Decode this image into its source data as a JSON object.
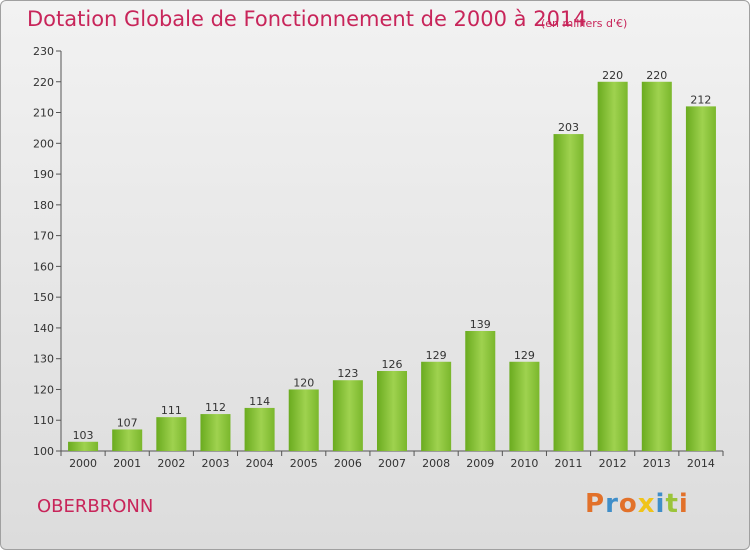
{
  "header": {
    "title": "Dotation Globale de Fonctionnement de 2000 à 2014",
    "subtitle": "(en milliers d'€)"
  },
  "footer": {
    "commune": "OBERBRONN",
    "logo_text": "Proxiti"
  },
  "colors": {
    "title": "#c8255a",
    "bar_light": "#9fd24f",
    "bar_dark": "#5f9e19",
    "logo_letters": [
      "#e2712a",
      "#3f8ec9",
      "#e2712a",
      "#f0c419",
      "#3f8ec9",
      "#9bc43a",
      "#e2712a"
    ]
  },
  "chart_data": {
    "type": "bar",
    "categories": [
      "2000",
      "2001",
      "2002",
      "2003",
      "2004",
      "2005",
      "2006",
      "2007",
      "2008",
      "2009",
      "2010",
      "2011",
      "2012",
      "2013",
      "2014"
    ],
    "values": [
      103,
      107,
      111,
      112,
      114,
      120,
      123,
      126,
      129,
      139,
      129,
      203,
      220,
      220,
      212
    ],
    "ylim": [
      100,
      230
    ],
    "yticks": [
      100,
      110,
      120,
      130,
      140,
      150,
      160,
      170,
      180,
      190,
      200,
      210,
      220,
      230
    ],
    "grid": false,
    "data_labels": true
  }
}
